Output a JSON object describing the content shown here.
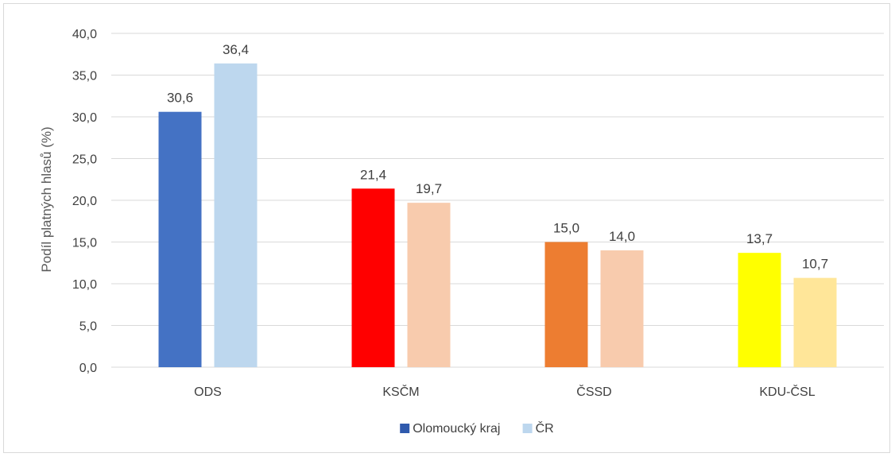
{
  "chart_data": {
    "type": "bar",
    "categories": [
      "ODS",
      "KSČM",
      "ČSSD",
      "KDU-ČSL"
    ],
    "series": [
      {
        "name": "Olomoucký kraj",
        "values": [
          30.6,
          21.4,
          15.0,
          13.7
        ],
        "labels": [
          "30,6",
          "21,4",
          "15,0",
          "13,7"
        ],
        "colors": [
          "#4472c4",
          "#ff0000",
          "#ed7d31",
          "#ffff00"
        ],
        "legend_color": "#2f5aad"
      },
      {
        "name": "ČR",
        "values": [
          36.4,
          19.7,
          14.0,
          10.7
        ],
        "labels": [
          "36,4",
          "19,7",
          "14,0",
          "10,7"
        ],
        "colors": [
          "#bdd7ee",
          "#f8cbad",
          "#f8cbad",
          "#ffe699"
        ],
        "legend_color": "#bdd7ee"
      }
    ],
    "ylabel": "Podíl platných hlasů (%)",
    "xlabel": "",
    "ylim": [
      0,
      40
    ],
    "yticks": [
      "0,0",
      "5,0",
      "10,0",
      "15,0",
      "20,0",
      "25,0",
      "30,0",
      "35,0",
      "40,0"
    ],
    "ytick_values": [
      0,
      5,
      10,
      15,
      20,
      25,
      30,
      35,
      40
    ],
    "grid": true,
    "grid_color": "#d9d9d9",
    "legend_position": "bottom"
  }
}
